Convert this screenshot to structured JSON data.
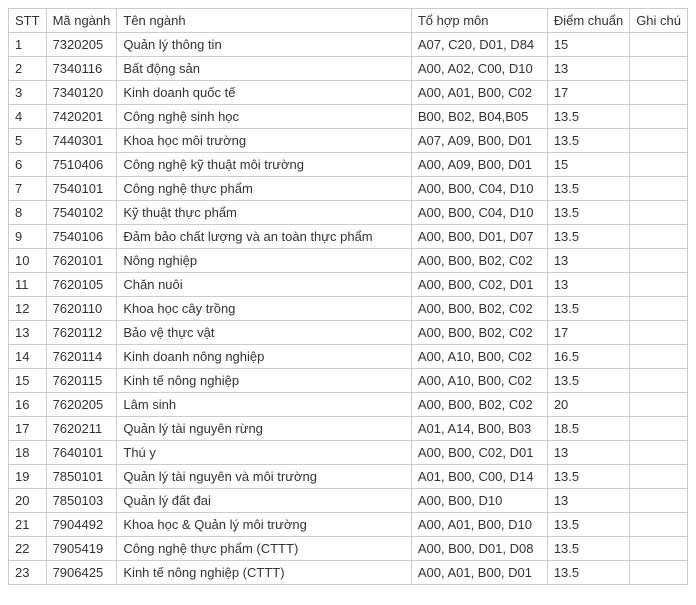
{
  "table": {
    "columns": [
      "STT",
      "Mã ngành",
      "Tên ngành",
      "Tổ hợp môn",
      "Điểm chuẩn",
      "Ghi chú"
    ],
    "rows": [
      [
        "1",
        "7320205",
        "Quản lý thông tin",
        "A07, C20, D01, D84",
        "15",
        ""
      ],
      [
        "2",
        "7340116",
        "Bất động sản",
        "A00, A02, C00, D10",
        "13",
        ""
      ],
      [
        "3",
        "7340120",
        "Kinh doanh quốc tế",
        "A00, A01, B00, C02",
        "17",
        ""
      ],
      [
        "4",
        "7420201",
        "Công nghệ sinh học",
        "B00, B02, B04,B05",
        "13.5",
        ""
      ],
      [
        "5",
        "7440301",
        "Khoa học môi trường",
        "A07, A09, B00, D01",
        "13.5",
        ""
      ],
      [
        "6",
        "7510406",
        "Công nghệ kỹ thuật môi trường",
        "A00, A09, B00, D01",
        "15",
        ""
      ],
      [
        "7",
        "7540101",
        "Công nghệ thực phẩm",
        "A00, B00, C04, D10",
        "13.5",
        ""
      ],
      [
        "8",
        "7540102",
        "Kỹ thuật thực phẩm",
        "A00, B00, C04, D10",
        "13.5",
        ""
      ],
      [
        "9",
        "7540106",
        "Đảm bảo chất lượng và an toàn thực phẩm",
        "A00, B00, D01, D07",
        "13.5",
        ""
      ],
      [
        "10",
        "7620101",
        "Nông nghiệp",
        "A00, B00, B02, C02",
        "13",
        ""
      ],
      [
        "11",
        "7620105",
        "Chăn nuôi",
        "A00, B00, C02, D01",
        "13",
        ""
      ],
      [
        "12",
        "7620110",
        "Khoa học cây trồng",
        "A00, B00, B02, C02",
        "13.5",
        ""
      ],
      [
        "13",
        "7620112",
        "Bảo vệ thực vật",
        "A00, B00, B02, C02",
        "17",
        ""
      ],
      [
        "14",
        "7620114",
        "Kinh doanh nông nghiệp",
        "A00, A10, B00, C02",
        "16.5",
        ""
      ],
      [
        "15",
        "7620115",
        "Kinh tế nông nghiệp",
        "A00, A10, B00, C02",
        "13.5",
        ""
      ],
      [
        "16",
        "7620205",
        "Lâm sinh",
        "A00, B00, B02, C02",
        "20",
        ""
      ],
      [
        "17",
        "7620211",
        "Quản lý tài nguyên rừng",
        "A01, A14, B00, B03",
        "18.5",
        ""
      ],
      [
        "18",
        "7640101",
        "Thú y",
        "A00, B00, C02, D01",
        "13",
        ""
      ],
      [
        "19",
        "7850101",
        "Quản lý tài nguyên và môi trường",
        "A01, B00, C00, D14",
        "13.5",
        ""
      ],
      [
        "20",
        "7850103",
        "Quản lý đất đai",
        "A00, B00, D10",
        "13",
        ""
      ],
      [
        "21",
        "7904492",
        "Khoa học & Quản lý môi trường",
        "A00, A01, B00, D10",
        "13.5",
        ""
      ],
      [
        "22",
        "7905419",
        "Công nghệ thực phẩm (CTTT)",
        "A00, B00, D01, D08",
        "13.5",
        ""
      ],
      [
        "23",
        "7906425",
        "Kinh tế nông nghiệp (CTTT)",
        "A00, A01, B00, D01",
        "13.5",
        ""
      ]
    ],
    "border_color": "#cccccc",
    "text_color": "#333333",
    "background_color": "#ffffff",
    "font_size": 13
  }
}
